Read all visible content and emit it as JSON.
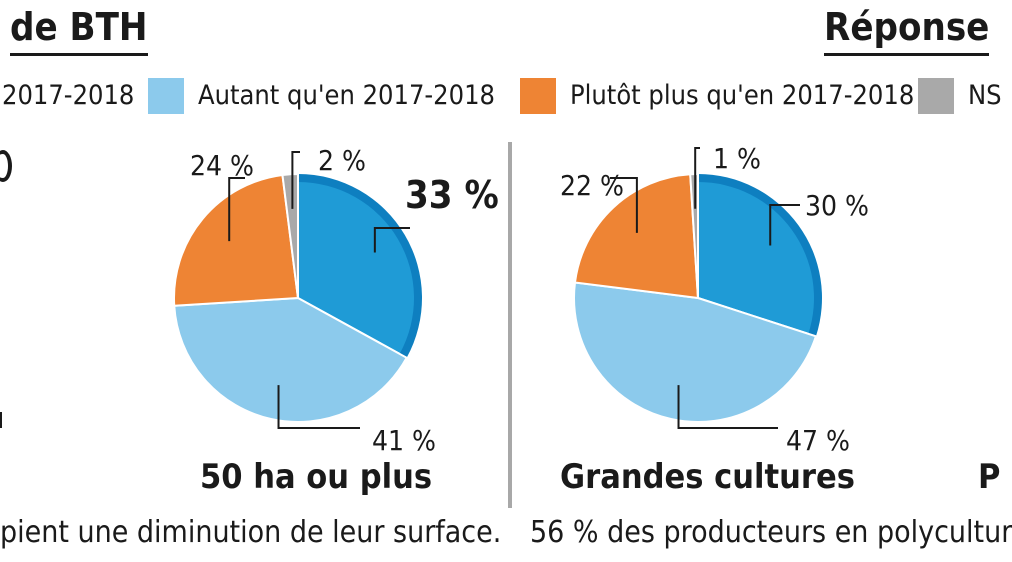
{
  "headings": {
    "left": "de BTH",
    "right": "Réponse"
  },
  "legend": [
    {
      "label": "2017-2018",
      "color": "#1f9bd6"
    },
    {
      "label": "Autant qu'en 2017-2018",
      "color": "#8ccaec"
    },
    {
      "label": "Plutôt plus qu'en 2017-2018",
      "color": "#ee8434"
    },
    {
      "label": "NS",
      "color": "#a9a9a9"
    }
  ],
  "chart_data": [
    {
      "type": "pie",
      "title": "50 ha ou plus",
      "categories": [
        "2017-2018",
        "Autant qu'en 2017-2018",
        "Plutôt plus qu'en 2017-2018",
        "NS"
      ],
      "values": [
        33,
        41,
        24,
        2
      ],
      "labels": [
        "33 %",
        "41 %",
        "24 %",
        "2 %"
      ],
      "highlight": "33 %",
      "colors": [
        "#1f9bd6",
        "#8ccaec",
        "#ee8434",
        "#a9a9a9"
      ]
    },
    {
      "type": "pie",
      "title": "Grandes cultures",
      "categories": [
        "2017-2018",
        "Autant qu'en 2017-2018",
        "Plutôt plus qu'en 2017-2018",
        "NS"
      ],
      "values": [
        30,
        47,
        22,
        1
      ],
      "labels": [
        "30 %",
        "47 %",
        "22 %",
        "1 %"
      ],
      "colors": [
        "#1f9bd6",
        "#8ccaec",
        "#ee8434",
        "#a9a9a9"
      ]
    }
  ],
  "captions": {
    "left": "pient une diminution de leur surface.",
    "right": "56 % des producteurs en polycultur",
    "right_subtitle_fragment": "P"
  }
}
